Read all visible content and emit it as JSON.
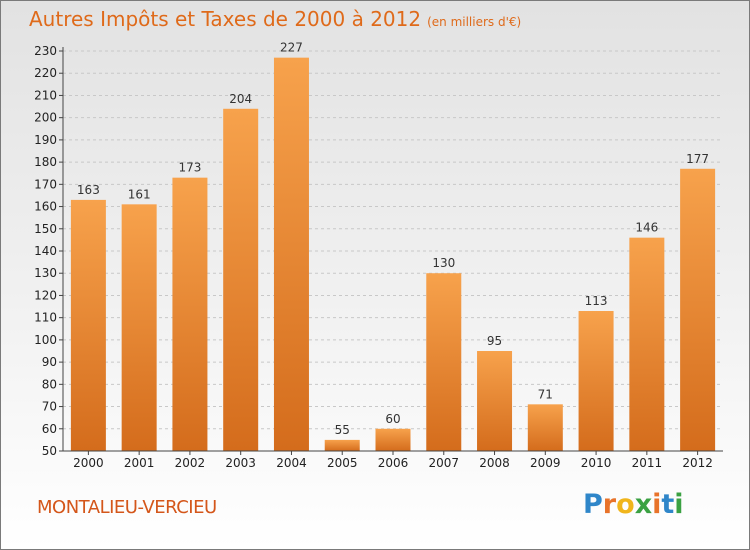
{
  "title": "Autres Impôts et Taxes de 2000 à 2012",
  "title_unit": "(en milliers d'€)",
  "commune": "MONTALIEU-VERCIEU",
  "logo": {
    "text": "Proxiti"
  },
  "colors": {
    "bar_light": "#f7a24c",
    "bar_dark": "#d46c1c",
    "title": "#df6a1a",
    "commune": "#d4561a"
  },
  "chart_data": {
    "type": "bar",
    "categories": [
      "2000",
      "2001",
      "2002",
      "2003",
      "2004",
      "2005",
      "2006",
      "2007",
      "2008",
      "2009",
      "2010",
      "2011",
      "2012"
    ],
    "values": [
      163,
      161,
      173,
      204,
      227,
      55,
      60,
      130,
      95,
      71,
      113,
      146,
      177
    ],
    "ylim": [
      50,
      230
    ],
    "yticks": [
      50,
      60,
      70,
      80,
      90,
      100,
      110,
      120,
      130,
      140,
      150,
      160,
      170,
      180,
      190,
      200,
      210,
      220,
      230
    ],
    "grid": true,
    "xlabel": "",
    "ylabel": ""
  }
}
